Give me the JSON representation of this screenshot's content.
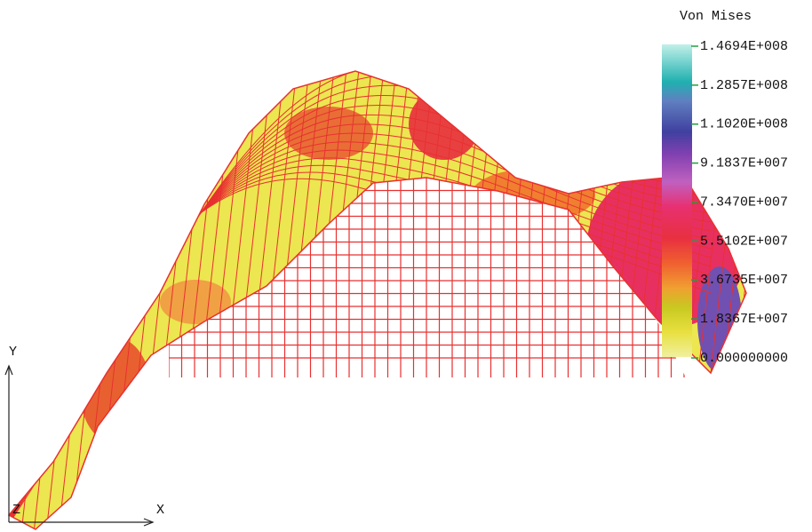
{
  "legend": {
    "title": "Von Mises",
    "labels": [
      "1.4694E+008",
      "1.2857E+008",
      "1.1020E+008",
      "9.1837E+007",
      "7.3470E+007",
      "5.5102E+007",
      "3.6735E+007",
      "1.8367E+007",
      "0.000000000"
    ]
  },
  "axes": {
    "y": "Y",
    "x": "X",
    "z": "Z"
  }
}
